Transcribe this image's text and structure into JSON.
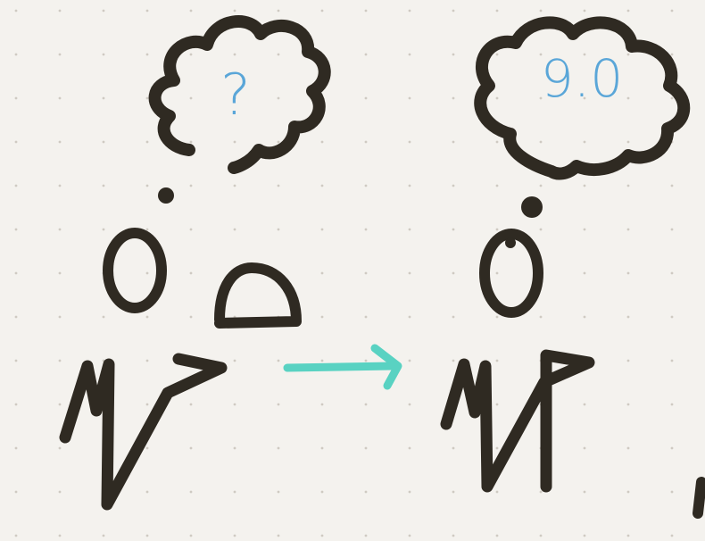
{
  "sketch": {
    "left_figure": {
      "thought_text": "?"
    },
    "right_figure": {
      "thought_text": "9.0"
    }
  },
  "colors": {
    "paper": "#f4f2ee",
    "dot_grid": "#cfcac2",
    "ink": "#2f2a22",
    "thought_text_blue": "#5aa6d8",
    "arrow_teal": "#59d2c2"
  }
}
